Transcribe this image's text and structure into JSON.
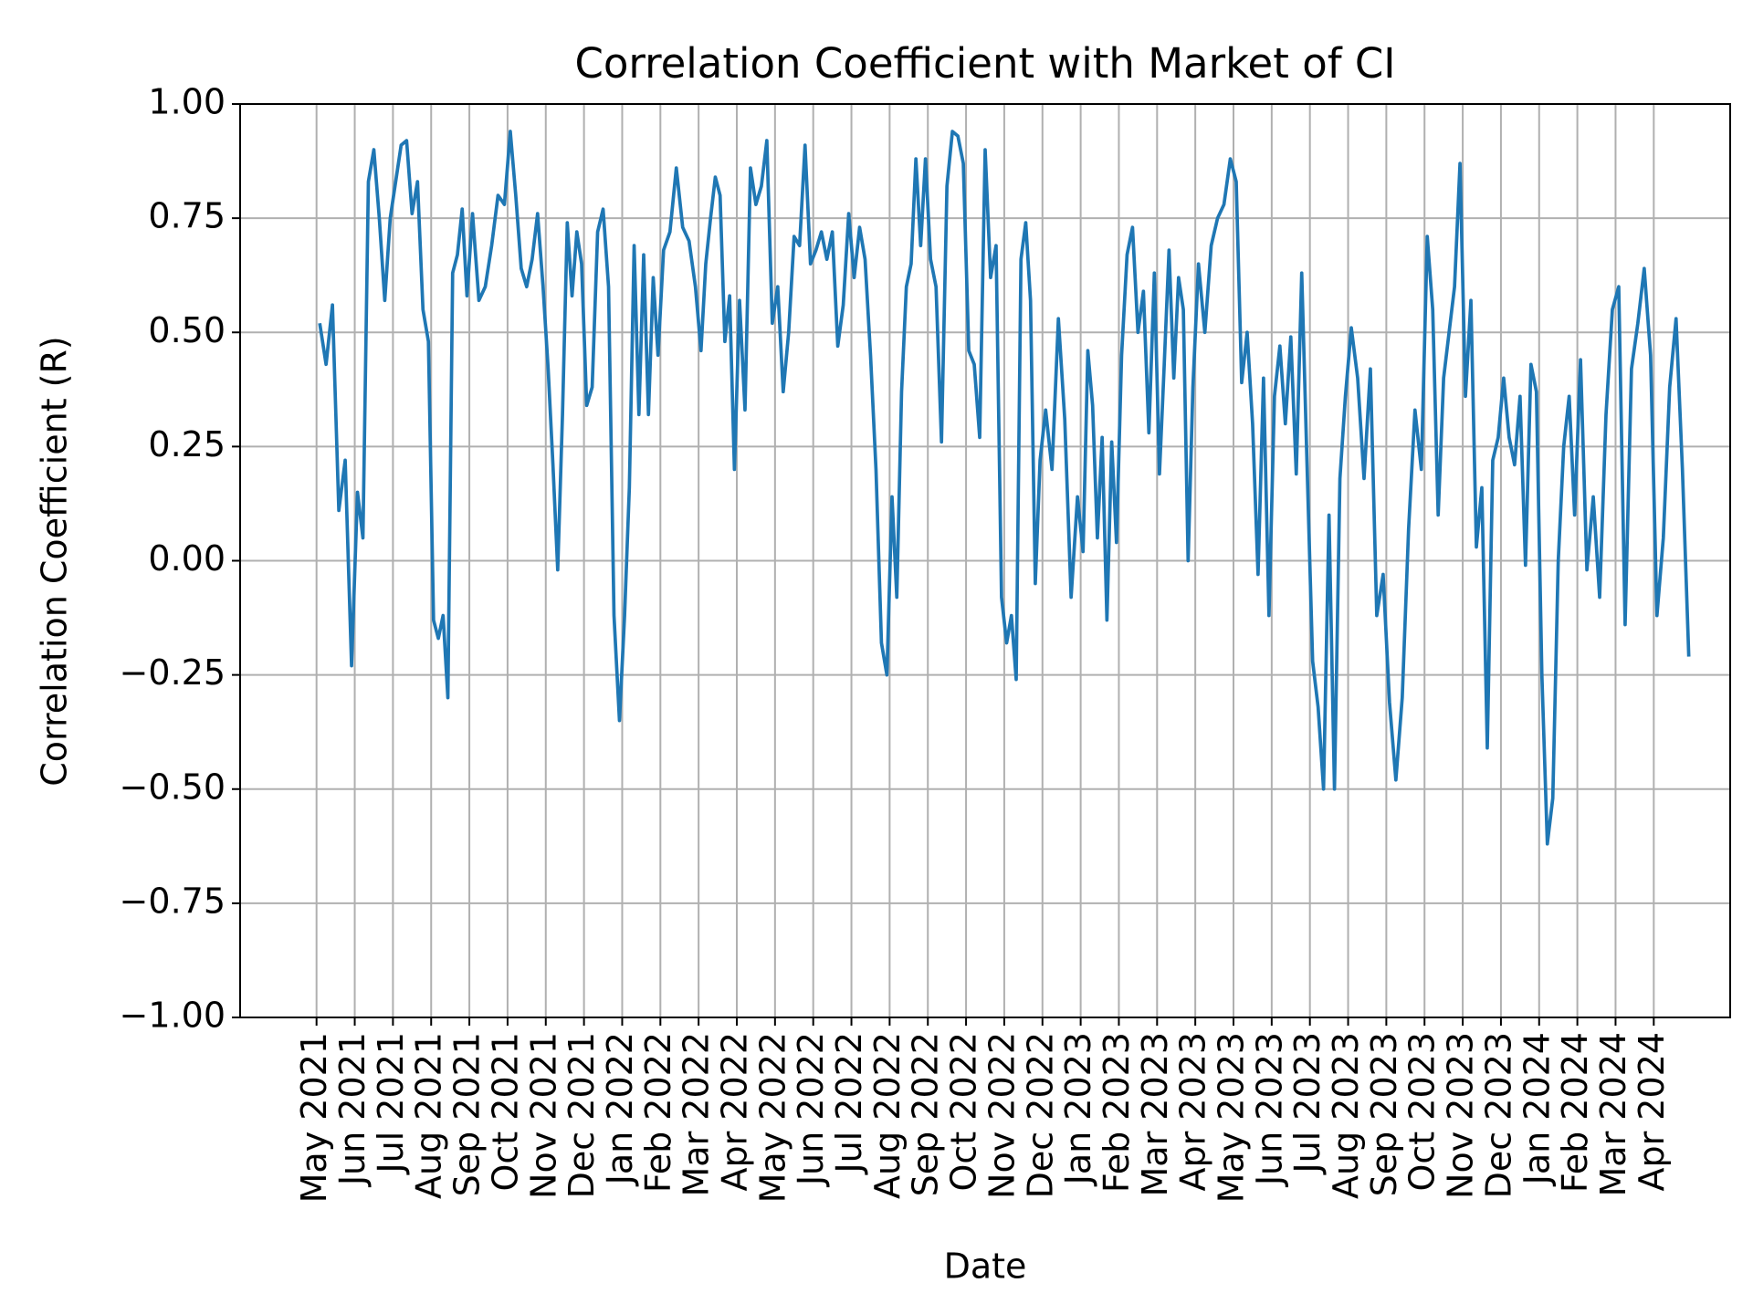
{
  "chart_data": {
    "type": "line",
    "title": "Correlation Coefficient with Market of CI",
    "x_label": "Date",
    "y_label": "Correlation Coefficient (R)",
    "color": "#1f77b4",
    "grid": true,
    "xlim": [
      "2021-03",
      "2024-06"
    ],
    "ylim": [
      -1,
      1
    ],
    "yticks": [
      {
        "value": -1,
        "label": "−1.00"
      },
      {
        "value": -0.75,
        "label": "−0.75"
      },
      {
        "value": -0.5,
        "label": "−0.50"
      },
      {
        "value": -0.25,
        "label": "−0.25"
      },
      {
        "value": 0,
        "label": "0.00"
      },
      {
        "value": 0.25,
        "label": "0.25"
      },
      {
        "value": 0.5,
        "label": "0.50"
      },
      {
        "value": 0.75,
        "label": "0.75"
      },
      {
        "value": 1,
        "label": "1.00"
      }
    ],
    "xticks": [
      {
        "value": "2021-05",
        "label": "May 2021"
      },
      {
        "value": "2021-06",
        "label": "Jun 2021"
      },
      {
        "value": "2021-07",
        "label": "Jul 2021"
      },
      {
        "value": "2021-08",
        "label": "Aug 2021"
      },
      {
        "value": "2021-09",
        "label": "Sep 2021"
      },
      {
        "value": "2021-10",
        "label": "Oct 2021"
      },
      {
        "value": "2021-11",
        "label": "Nov 2021"
      },
      {
        "value": "2021-12",
        "label": "Dec 2021"
      },
      {
        "value": "2022-01",
        "label": "Jan 2022"
      },
      {
        "value": "2022-02",
        "label": "Feb 2022"
      },
      {
        "value": "2022-03",
        "label": "Mar 2022"
      },
      {
        "value": "2022-04",
        "label": "Apr 2022"
      },
      {
        "value": "2022-05",
        "label": "May 2022"
      },
      {
        "value": "2022-06",
        "label": "Jun 2022"
      },
      {
        "value": "2022-07",
        "label": "Jul 2022"
      },
      {
        "value": "2022-08",
        "label": "Aug 2022"
      },
      {
        "value": "2022-09",
        "label": "Sep 2022"
      },
      {
        "value": "2022-10",
        "label": "Oct 2022"
      },
      {
        "value": "2022-11",
        "label": "Nov 2022"
      },
      {
        "value": "2022-12",
        "label": "Dec 2022"
      },
      {
        "value": "2023-01",
        "label": "Jan 2023"
      },
      {
        "value": "2023-02",
        "label": "Feb 2023"
      },
      {
        "value": "2023-03",
        "label": "Mar 2023"
      },
      {
        "value": "2023-04",
        "label": "Apr 2023"
      },
      {
        "value": "2023-05",
        "label": "May 2023"
      },
      {
        "value": "2023-06",
        "label": "Jun 2023"
      },
      {
        "value": "2023-07",
        "label": "Jul 2023"
      },
      {
        "value": "2023-08",
        "label": "Aug 2023"
      },
      {
        "value": "2023-09",
        "label": "Sep 2023"
      },
      {
        "value": "2023-10",
        "label": "Oct 2023"
      },
      {
        "value": "2023-11",
        "label": "Nov 2023"
      },
      {
        "value": "2023-12",
        "label": "Dec 2023"
      },
      {
        "value": "2024-01",
        "label": "Jan 2024"
      },
      {
        "value": "2024-02",
        "label": "Feb 2024"
      },
      {
        "value": "2024-03",
        "label": "Mar 2024"
      },
      {
        "value": "2024-04",
        "label": "Apr 2024"
      }
    ],
    "x": [
      "2021-05",
      "2021-05",
      "2021-05",
      "2021-05",
      "2021-05",
      "2021-05",
      "2021-06",
      "2021-06",
      "2021-06",
      "2021-06",
      "2021-06",
      "2021-06",
      "2021-06",
      "2021-07",
      "2021-07",
      "2021-07",
      "2021-07",
      "2021-07",
      "2021-07",
      "2021-07",
      "2021-08",
      "2021-08",
      "2021-08",
      "2021-08",
      "2021-08",
      "2021-08",
      "2021-08",
      "2021-08",
      "2021-09",
      "2021-09",
      "2021-09",
      "2021-09",
      "2021-09",
      "2021-09",
      "2021-10",
      "2021-10",
      "2021-10",
      "2021-10",
      "2021-10",
      "2021-10",
      "2021-10",
      "2021-11",
      "2021-11",
      "2021-11",
      "2021-11",
      "2021-11",
      "2021-11",
      "2021-11",
      "2021-11",
      "2021-12",
      "2021-12",
      "2021-12",
      "2021-12",
      "2021-12",
      "2021-12",
      "2021-12",
      "2022-01",
      "2022-01",
      "2022-01",
      "2022-01",
      "2022-01",
      "2022-01",
      "2022-01",
      "2022-01",
      "2022-02",
      "2022-02",
      "2022-02",
      "2022-02",
      "2022-02",
      "2022-02",
      "2022-03",
      "2022-03",
      "2022-03",
      "2022-03",
      "2022-03",
      "2022-03",
      "2022-03",
      "2022-03",
      "2022-04",
      "2022-04",
      "2022-04",
      "2022-04",
      "2022-04",
      "2022-04",
      "2022-04",
      "2022-05",
      "2022-05",
      "2022-05",
      "2022-05",
      "2022-05",
      "2022-05",
      "2022-05",
      "2022-06",
      "2022-06",
      "2022-06",
      "2022-06",
      "2022-06",
      "2022-06",
      "2022-06",
      "2022-07",
      "2022-07",
      "2022-07",
      "2022-07",
      "2022-07",
      "2022-07",
      "2022-07",
      "2022-08",
      "2022-08",
      "2022-08",
      "2022-08",
      "2022-08",
      "2022-08",
      "2022-08",
      "2022-08",
      "2022-09",
      "2022-09",
      "2022-09",
      "2022-09",
      "2022-09",
      "2022-09",
      "2022-09",
      "2022-10",
      "2022-10",
      "2022-10",
      "2022-10",
      "2022-10",
      "2022-10",
      "2022-10",
      "2022-11",
      "2022-11",
      "2022-11",
      "2022-11",
      "2022-11",
      "2022-11",
      "2022-11",
      "2022-11",
      "2022-12",
      "2022-12",
      "2022-12",
      "2022-12",
      "2022-12",
      "2022-12",
      "2023-01",
      "2023-01",
      "2023-01",
      "2023-01",
      "2023-01",
      "2023-01",
      "2023-01",
      "2023-01",
      "2023-02",
      "2023-02",
      "2023-02",
      "2023-02",
      "2023-02",
      "2023-02",
      "2023-02",
      "2023-03",
      "2023-03",
      "2023-03",
      "2023-03",
      "2023-03",
      "2023-03",
      "2023-03",
      "2023-03",
      "2023-04",
      "2023-04",
      "2023-04",
      "2023-04",
      "2023-04",
      "2023-04",
      "2023-05",
      "2023-05",
      "2023-05",
      "2023-05",
      "2023-05",
      "2023-05",
      "2023-05",
      "2023-06",
      "2023-06",
      "2023-06",
      "2023-06",
      "2023-06",
      "2023-06",
      "2023-06",
      "2023-07",
      "2023-07",
      "2023-07",
      "2023-07",
      "2023-07",
      "2023-07",
      "2023-07",
      "2023-08",
      "2023-08",
      "2023-08",
      "2023-08",
      "2023-08",
      "2023-08",
      "2023-09",
      "2023-09",
      "2023-09",
      "2023-09",
      "2023-09",
      "2023-09",
      "2023-10",
      "2023-10",
      "2023-10",
      "2023-10",
      "2023-10",
      "2023-10",
      "2023-10",
      "2023-11",
      "2023-11",
      "2023-11",
      "2023-11",
      "2023-11",
      "2023-11",
      "2023-11",
      "2023-12",
      "2023-12",
      "2023-12",
      "2023-12",
      "2023-12",
      "2023-12",
      "2023-12",
      "2024-01",
      "2024-01",
      "2024-01",
      "2024-01",
      "2024-01",
      "2024-01",
      "2024-01",
      "2024-02",
      "2024-02",
      "2024-02",
      "2024-02",
      "2024-02",
      "2024-02",
      "2024-03",
      "2024-03",
      "2024-03",
      "2024-03",
      "2024-03",
      "2024-03",
      "2024-04",
      "2024-04",
      "2024-04",
      "2024-04",
      "2024-04",
      "2024-04"
    ],
    "values": [
      0.52,
      0.43,
      0.56,
      0.11,
      0.22,
      -0.23,
      0.15,
      0.05,
      0.83,
      0.9,
      0.75,
      0.57,
      0.75,
      0.83,
      0.91,
      0.92,
      0.76,
      0.83,
      0.55,
      0.48,
      -0.13,
      -0.17,
      -0.12,
      -0.3,
      0.63,
      0.67,
      0.77,
      0.58,
      0.76,
      0.57,
      0.6,
      0.69,
      0.8,
      0.78,
      0.94,
      0.8,
      0.64,
      0.6,
      0.66,
      0.76,
      0.6,
      0.42,
      0.21,
      -0.02,
      0.32,
      0.74,
      0.58,
      0.72,
      0.65,
      0.34,
      0.38,
      0.72,
      0.77,
      0.6,
      -0.12,
      -0.35,
      -0.12,
      0.16,
      0.69,
      0.32,
      0.67,
      0.32,
      0.62,
      0.45,
      0.68,
      0.72,
      0.86,
      0.73,
      0.7,
      0.6,
      0.46,
      0.65,
      0.75,
      0.84,
      0.8,
      0.48,
      0.58,
      0.2,
      0.57,
      0.33,
      0.86,
      0.78,
      0.82,
      0.92,
      0.52,
      0.6,
      0.37,
      0.5,
      0.71,
      0.69,
      0.91,
      0.65,
      0.68,
      0.72,
      0.66,
      0.72,
      0.47,
      0.56,
      0.76,
      0.62,
      0.73,
      0.66,
      0.45,
      0.2,
      -0.18,
      -0.25,
      0.14,
      -0.08,
      0.37,
      0.6,
      0.65,
      0.88,
      0.69,
      0.88,
      0.66,
      0.6,
      0.26,
      0.82,
      0.94,
      0.93,
      0.87,
      0.46,
      0.43,
      0.27,
      0.9,
      0.62,
      0.69,
      -0.08,
      -0.18,
      -0.12,
      -0.26,
      0.66,
      0.74,
      0.57,
      -0.05,
      0.22,
      0.33,
      0.2,
      0.53,
      0.31,
      -0.08,
      0.14,
      0.02,
      0.46,
      0.34,
      0.05,
      0.27,
      -0.13,
      0.26,
      0.04,
      0.45,
      0.67,
      0.73,
      0.5,
      0.59,
      0.28,
      0.63,
      0.19,
      0.43,
      0.68,
      0.4,
      0.62,
      0.55,
      0.0,
      0.38,
      0.65,
      0.5,
      0.69,
      0.75,
      0.78,
      0.88,
      0.83,
      0.39,
      0.5,
      0.3,
      -0.03,
      0.4,
      -0.12,
      0.36,
      0.47,
      0.3,
      0.49,
      0.19,
      0.63,
      0.2,
      -0.22,
      -0.32,
      -0.5,
      0.1,
      -0.5,
      0.18,
      0.36,
      0.51,
      0.4,
      0.18,
      0.42,
      -0.12,
      -0.03,
      -0.31,
      -0.48,
      -0.3,
      0.07,
      0.33,
      0.2,
      0.71,
      0.55,
      0.1,
      0.4,
      0.5,
      0.6,
      0.87,
      0.36,
      0.57,
      0.03,
      0.16,
      -0.41,
      0.22,
      0.27,
      0.4,
      0.27,
      0.21,
      0.36,
      -0.01,
      0.43,
      0.37,
      -0.25,
      -0.62,
      -0.52,
      0.0,
      0.25,
      0.36,
      0.1,
      0.44,
      -0.02,
      0.14,
      -0.08,
      0.32,
      0.55,
      0.6,
      -0.14,
      0.42,
      0.52,
      0.64,
      0.45,
      -0.12,
      0.05,
      0.38,
      0.53,
      0.2,
      -0.21
    ]
  }
}
